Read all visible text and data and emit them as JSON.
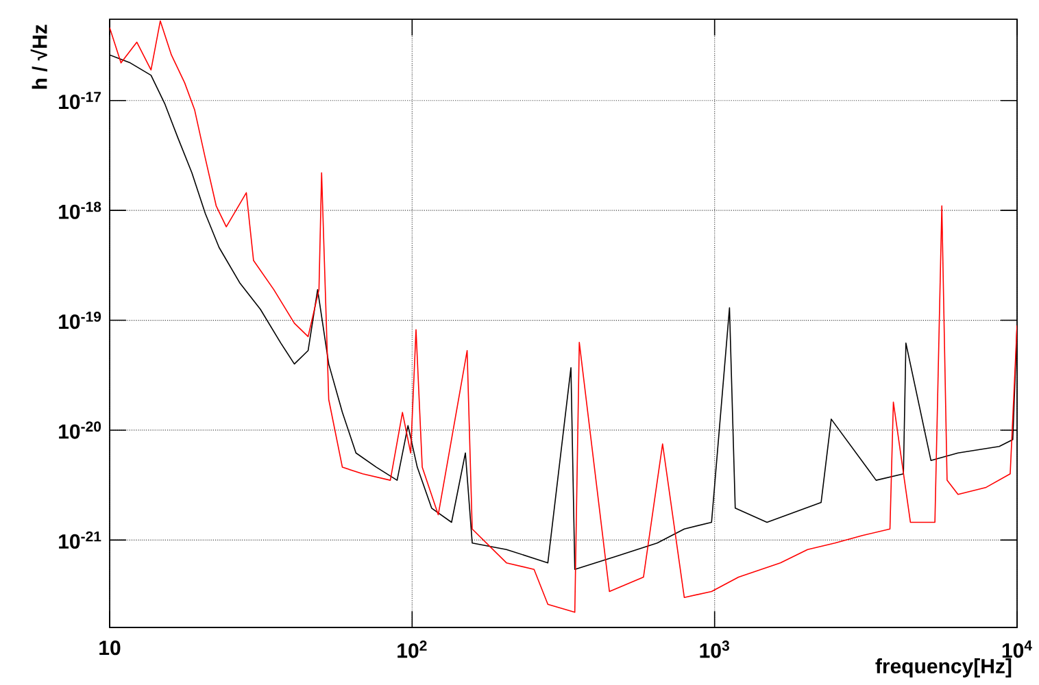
{
  "chart_data": {
    "type": "line",
    "xlabel": "frequency[Hz]",
    "ylabel": "h / √Hz",
    "log": "xy",
    "grid": true,
    "marker": "none",
    "line_style": "solid",
    "xlim": [
      10,
      10000
    ],
    "ylim": [
      1.6e-22,
      5.5e-17
    ],
    "xticks": [
      10,
      {
        "value": 100,
        "label": "10$^{2}$"
      },
      {
        "value": 1000,
        "label": "10$^{3}$"
      },
      {
        "value": 10000,
        "label": "10$^{4}$"
      }
    ],
    "yticks": [
      {
        "value": 1e-21,
        "label": "10$^{-21}$"
      },
      {
        "value": 1e-20,
        "label": "10$^{-20}$"
      },
      {
        "value": 1e-19,
        "label": "10$^{-19}$"
      },
      {
        "value": 1e-18,
        "label": "10$^{-18}$"
      },
      {
        "value": 1e-17,
        "label": "10$^{-17}$"
      }
    ],
    "series": [
      {
        "color": "#000000",
        "x": [
          10,
          11.7,
          13.7,
          15.2,
          16.8,
          18.7,
          20.7,
          23,
          26.9,
          31.5,
          36.8,
          40.8,
          45.3,
          48.7,
          53,
          58.8,
          65.2,
          76.2,
          89.2,
          96.9,
          104,
          116,
          135,
          150,
          158,
          205,
          281,
          335,
          345,
          472,
          646,
          794,
          977,
          1120,
          1170,
          1490,
          2250,
          2430,
          3420,
          4210,
          4290,
          5190,
          6380,
          8730,
          9680,
          10000
        ],
        "values": [
          2.6e-17,
          2.2e-17,
          1.7e-17,
          9.4e-18,
          4.6e-18,
          2.2e-18,
          9.4e-19,
          4.6e-19,
          2.2e-19,
          1.26e-19,
          6.2e-20,
          4e-20,
          5.3e-20,
          1.9e-19,
          4e-20,
          1.45e-20,
          6.2e-21,
          4.6e-21,
          3.5e-21,
          1.1e-20,
          4.6e-21,
          1.95e-21,
          1.45e-21,
          6.2e-21,
          9.4e-22,
          8.2e-22,
          6.2e-22,
          3.7e-20,
          5.4e-22,
          7.1e-22,
          9.4e-22,
          1.26e-21,
          1.45e-21,
          1.3e-19,
          1.95e-21,
          1.45e-21,
          2.2e-21,
          1.26e-20,
          3.5e-21,
          4e-21,
          6.2e-20,
          5.3e-21,
          6.2e-21,
          7.1e-21,
          8.2e-21,
          9e-20
        ]
      },
      {
        "color": "#ff0000",
        "x": [
          10,
          10.9,
          12.3,
          13.7,
          14.7,
          16,
          17.7,
          19.1,
          20.7,
          22.5,
          24.3,
          28.3,
          29.9,
          34.9,
          40.8,
          45.3,
          49.2,
          50.2,
          53,
          58.8,
          68.7,
          84.7,
          92.9,
          98.9,
          103,
          108,
          122,
          152,
          158,
          205,
          253,
          281,
          345,
          357,
          449,
          582,
          673,
          794,
          977,
          1200,
          1650,
          2030,
          2500,
          3080,
          3800,
          3900,
          4440,
          5350,
          5640,
          5870,
          6380,
          7870,
          9490,
          10000
        ],
        "values": [
          4.6e-17,
          2.2e-17,
          3.4e-17,
          1.9e-17,
          5.3e-17,
          2.6e-17,
          1.45e-17,
          8.2e-18,
          3e-18,
          1.1e-18,
          7.1e-19,
          1.45e-18,
          3.5e-19,
          1.9e-19,
          9.4e-20,
          7.1e-20,
          1.9e-19,
          2.2e-18,
          1.9e-20,
          4.6e-21,
          4e-21,
          3.5e-21,
          1.45e-20,
          6.2e-21,
          8.2e-20,
          4.6e-21,
          1.7e-21,
          5.3e-20,
          1.26e-21,
          6.2e-22,
          5.4e-22,
          2.6e-22,
          2.2e-22,
          6.3e-20,
          3.4e-22,
          4.6e-22,
          7.5e-21,
          3e-22,
          3.4e-22,
          4.6e-22,
          6.2e-22,
          8.2e-22,
          9.4e-22,
          1.1e-21,
          1.26e-21,
          1.8e-20,
          1.45e-21,
          1.45e-21,
          1.1e-18,
          3.5e-21,
          2.6e-21,
          3e-21,
          4e-21,
          9e-20
        ]
      }
    ]
  }
}
